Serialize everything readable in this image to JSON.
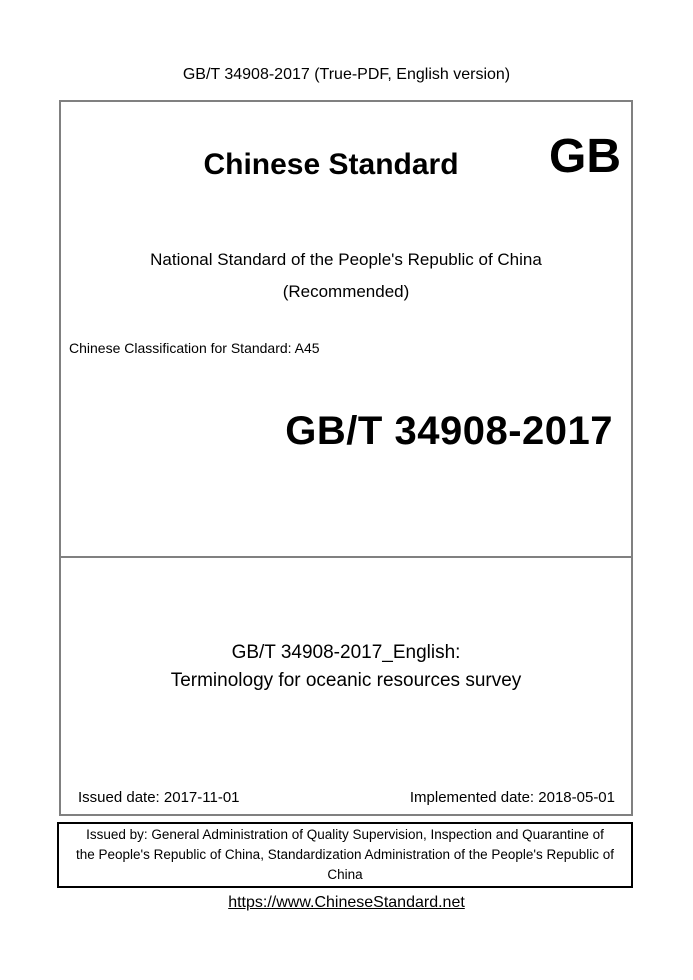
{
  "page": {
    "header": "GB/T 34908-2017 (True-PDF, English version)",
    "footer_url": "https://www.ChineseStandard.net"
  },
  "cover": {
    "brand": "Chinese Standard",
    "brand_code": "GB",
    "national_line": "National Standard of the People's Republic of China",
    "recommended_line": "(Recommended)",
    "classification": "Chinese Classification for Standard: A45",
    "standard_number": "GB/T 34908-2017"
  },
  "title_section": {
    "line1": "GB/T 34908-2017_English:",
    "line2": "Terminology for oceanic resources survey"
  },
  "dates": {
    "issued": "Issued date: 2017-11-01",
    "implemented": "Implemented date: 2018-05-01"
  },
  "issuer": {
    "lines": [
      "Issued by: General Administration of Quality Supervision, Inspection and Quarantine of",
      "the People's Republic of China, Standardization Administration of the People's Republic of",
      "China"
    ]
  },
  "colors": {
    "text": "#000000",
    "box_border": "#808080",
    "issuer_border": "#000000",
    "background": "#ffffff"
  }
}
